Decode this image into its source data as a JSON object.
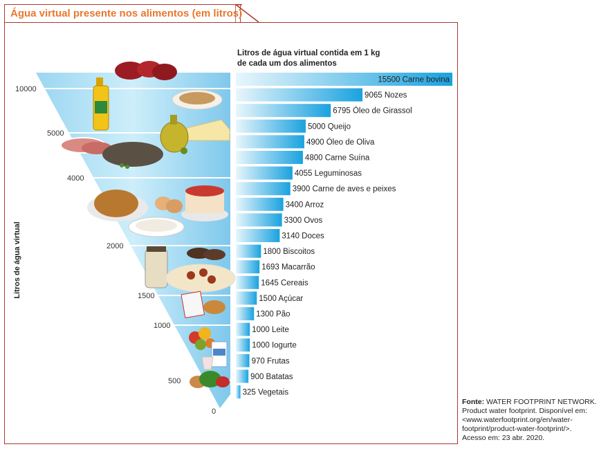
{
  "title": "Água virtual presente nos alimentos (em litros)",
  "header_line1": "Litros de água virtual contida em 1 kg",
  "header_line2": "de cada um dos alimentos",
  "ylabel": "Litros de água virtual",
  "source_label": "Fonte:",
  "source_line1": "WATER FOOTPRINT NETWORK.",
  "source_line2": "Product water footprint. Disponível em:",
  "source_line3": "<www.waterfootprint.org/en/water-",
  "source_line4": "footprint/product-water-footprint/>.",
  "source_line5": "Acesso em: 23 abr. 2020.",
  "colors": {
    "accent_orange": "#e8782e",
    "frame_red": "#b2352d",
    "bar_light": "#dff3fb",
    "bar_dark": "#1aa2df",
    "funnel_light": "#bfe6f7",
    "funnel_dark": "#1e9ed9"
  },
  "chart_data": {
    "type": "bar",
    "orientation": "horizontal",
    "categories": [
      "Carne bovina",
      "Nozes",
      "Óleo de Girassol",
      "Queijo",
      "Óleo de Oliva",
      "Carne Suína",
      "Leguminosas",
      "Carne de aves e peixes",
      "Arroz",
      "Ovos",
      "Doces",
      "Biscoitos",
      "Macarrão",
      "Cereais",
      "Açúcar",
      "Pão",
      "Leite",
      "Iogurte",
      "Frutas",
      "Batatas",
      "Vegetais"
    ],
    "values": [
      15500,
      9065,
      6795,
      5000,
      4900,
      4800,
      4055,
      3900,
      3400,
      3300,
      3140,
      1800,
      1693,
      1645,
      1500,
      1300,
      1000,
      1000,
      970,
      900,
      325
    ],
    "value_labels": [
      "15500",
      "9065",
      "6795",
      "5000",
      "4900",
      "4800",
      "4055",
      "3900",
      "3400",
      "3300",
      "3140",
      "1800",
      "1693",
      "1645",
      "1500",
      "1300",
      "1000",
      "1000",
      "970",
      "900",
      "325"
    ],
    "ylabel": "Litros de água virtual",
    "y_ticks": [
      "10000",
      "5000",
      "4000",
      "2000",
      "1500",
      "1000",
      "500",
      "0"
    ],
    "food_icons": [
      "beef-steaks",
      "walnuts-plate",
      "sunflower-oil-bottle",
      "cheese",
      "olive-oil-jar",
      "pork-chops",
      "lentils",
      "roast-chicken",
      "eggs",
      "cake",
      "rice-bowl",
      "rice-jar",
      "cookies",
      "spaghetti",
      "sugar-bag",
      "bread",
      "fruits",
      "milk-carton",
      "yogurt",
      "potatoes",
      "vegetables"
    ]
  }
}
